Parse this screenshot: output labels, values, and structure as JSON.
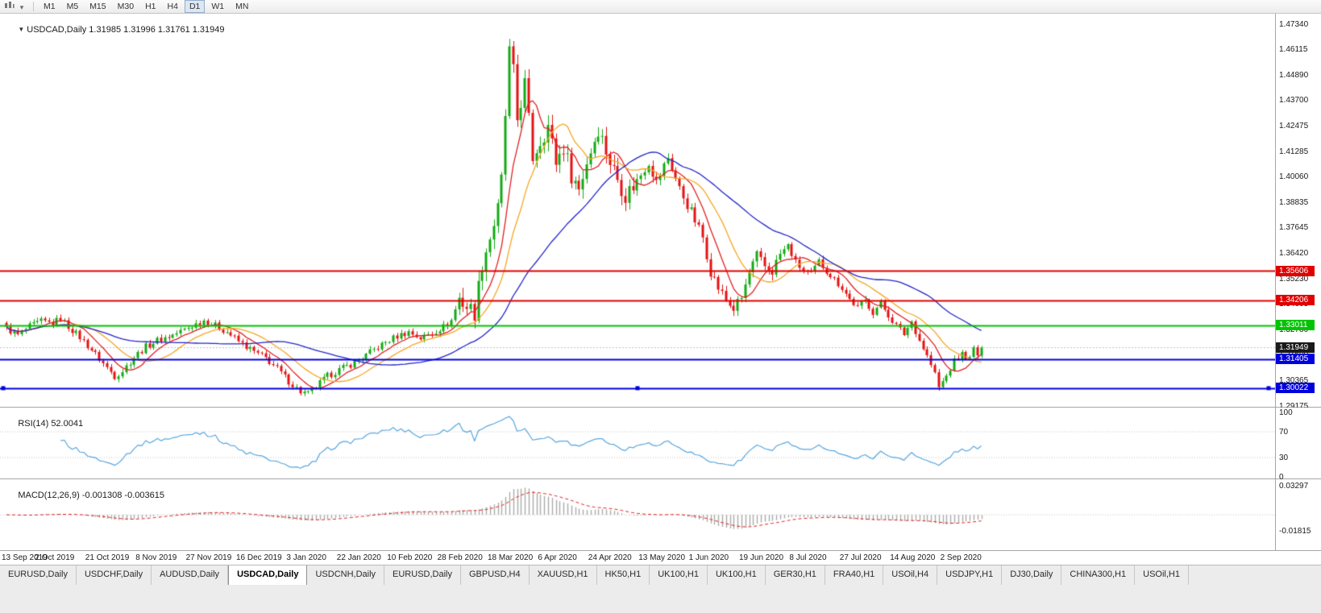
{
  "toolbar": {
    "icons": [
      "chart-type-icon",
      "timeframes-dropdown-icon"
    ],
    "timeframes": [
      "M1",
      "M5",
      "M15",
      "M30",
      "H1",
      "H4",
      "D1",
      "W1",
      "MN"
    ],
    "active_timeframe": "D1"
  },
  "chart": {
    "symbol_period": "USDCAD,Daily",
    "ohlc_text": "1.31985 1.31996 1.31761 1.31949",
    "price_ticks": [
      "1.47340",
      "1.46115",
      "1.44890",
      "1.43700",
      "1.42475",
      "1.41285",
      "1.40060",
      "1.38835",
      "1.37645",
      "1.36420",
      "1.35230",
      "1.34005",
      "1.32780",
      "1.31590",
      "1.30365",
      "1.29175"
    ],
    "levels": [
      {
        "type": "resistance-line",
        "label": "1.35606",
        "value": 1.35606,
        "color": "#DF0000",
        "width": 2
      },
      {
        "type": "resistance-line",
        "label": "1.34206",
        "value": 1.34206,
        "color": "#DF0000",
        "width": 2
      },
      {
        "type": "pivot-line",
        "label": "1.33011",
        "value": 1.33011,
        "color": "#00C400",
        "width": 2
      },
      {
        "type": "current-price",
        "label": "1.31949",
        "value": 1.31949,
        "color": "#1A1A1A",
        "width": 1
      },
      {
        "type": "support-line",
        "label": "1.31405",
        "value": 1.31405,
        "color": "#0000DC",
        "width": 2
      },
      {
        "type": "support-line",
        "label": "1.30022",
        "value": 1.30022,
        "color": "#0000DC",
        "width": 2,
        "selected": true
      }
    ],
    "date_labels": [
      "13 Sep 2019",
      "2 Oct 2019",
      "21 Oct 2019",
      "8 Nov 2019",
      "27 Nov 2019",
      "16 Dec 2019",
      "3 Jan 2020",
      "22 Jan 2020",
      "10 Feb 2020",
      "28 Feb 2020",
      "18 Mar 2020",
      "6 Apr 2020",
      "24 Apr 2020",
      "13 May 2020",
      "1 Jun 2020",
      "19 Jun 2020",
      "8 Jul 2020",
      "27 Jul 2020",
      "14 Aug 2020",
      "2 Sep 2020"
    ]
  },
  "rsi": {
    "name": "RSI(14)",
    "value": "52.0041",
    "line_color": "#56A6DE",
    "level_lines": [
      70,
      30
    ],
    "ticks": [
      {
        "label": "100",
        "value": 100
      },
      {
        "label": "70",
        "value": 70
      },
      {
        "label": "30",
        "value": 30
      },
      {
        "label": "0",
        "value": 0
      }
    ]
  },
  "macd": {
    "name": "MACD(12,26,9)",
    "values": "-0.001308 -0.003615",
    "histogram_color": "#ABABAB",
    "signal_color": "#E02020",
    "ticks": [
      {
        "label": "0.03297",
        "value": 0.03297
      },
      {
        "label": "-0.01815",
        "value": -0.01815
      }
    ]
  },
  "tabs": {
    "active_index": 3,
    "items": [
      "EURUSD,Daily",
      "USDCHF,Daily",
      "AUDUSD,Daily",
      "USDCAD,Daily",
      "USDCNH,Daily",
      "EURUSD,Daily",
      "GBPUSD,H4",
      "XAUUSD,H1",
      "HK50,H1",
      "UK100,H1",
      "UK100,H1",
      "GER30,H1",
      "FRA40,H1",
      "USOil,H4",
      "USDJPY,H1",
      "DJ30,Daily",
      "CHINA300,H1",
      "USOil,H1"
    ],
    "active_label": "USDCAD,Daily"
  },
  "chart_data": {
    "type": "candlestick",
    "symbol": "USDCAD",
    "timeframe": "Daily",
    "current_ohlc": {
      "open": 1.31985,
      "high": 1.31996,
      "low": 1.31761,
      "close": 1.31949
    },
    "bars": 253,
    "last_close": 1.31949,
    "y_axis": {
      "top": 1.4734,
      "bottom": 1.29175
    },
    "x_labels_every_bars": 13,
    "colors": {
      "up": "#14AA14",
      "down": "#E51212"
    },
    "moving_averages": [
      {
        "period": 8,
        "color": "#E02020"
      },
      {
        "period": 16,
        "color": "#F5A623"
      },
      {
        "period": 40,
        "color": "#2224C8"
      }
    ],
    "base_noise": 0.0016,
    "volatility_zones": [
      {
        "from": 117,
        "to": 162,
        "mult": 2.8
      },
      {
        "from": 163,
        "to": 200,
        "mult": 1.7
      }
    ],
    "close_keypoints": [
      [
        0,
        1.3285
      ],
      [
        3,
        1.3255
      ],
      [
        6,
        1.3295
      ],
      [
        9,
        1.332
      ],
      [
        12,
        1.331
      ],
      [
        14,
        1.3335
      ],
      [
        16,
        1.3295
      ],
      [
        19,
        1.3245
      ],
      [
        22,
        1.3185
      ],
      [
        25,
        1.312
      ],
      [
        28,
        1.306
      ],
      [
        30,
        1.3085
      ],
      [
        33,
        1.315
      ],
      [
        36,
        1.32
      ],
      [
        39,
        1.323
      ],
      [
        43,
        1.3255
      ],
      [
        47,
        1.329
      ],
      [
        51,
        1.3325
      ],
      [
        54,
        1.33
      ],
      [
        57,
        1.327
      ],
      [
        60,
        1.3225
      ],
      [
        64,
        1.3175
      ],
      [
        67,
        1.3145
      ],
      [
        70,
        1.3095
      ],
      [
        73,
        1.3035
      ],
      [
        76,
        1.2985
      ],
      [
        78,
        1.2975
      ],
      [
        80,
        1.301
      ],
      [
        83,
        1.306
      ],
      [
        86,
        1.309
      ],
      [
        89,
        1.3115
      ],
      [
        92,
        1.3145
      ],
      [
        95,
        1.3185
      ],
      [
        98,
        1.322
      ],
      [
        101,
        1.325
      ],
      [
        104,
        1.327
      ],
      [
        107,
        1.324
      ],
      [
        110,
        1.3265
      ],
      [
        113,
        1.3295
      ],
      [
        115,
        1.3325
      ],
      [
        117,
        1.343
      ],
      [
        119,
        1.339
      ],
      [
        121,
        1.3365
      ],
      [
        123,
        1.36
      ],
      [
        125,
        1.372
      ],
      [
        127,
        1.385
      ],
      [
        128,
        1.399
      ],
      [
        129,
        1.43
      ],
      [
        130,
        1.46
      ],
      [
        131,
        1.45
      ],
      [
        132,
        1.428
      ],
      [
        134,
        1.445
      ],
      [
        136,
        1.41
      ],
      [
        138,
        1.418
      ],
      [
        140,
        1.425
      ],
      [
        142,
        1.408
      ],
      [
        144,
        1.415
      ],
      [
        146,
        1.402
      ],
      [
        148,
        1.395
      ],
      [
        150,
        1.408
      ],
      [
        153,
        1.424
      ],
      [
        156,
        1.408
      ],
      [
        158,
        1.4
      ],
      [
        160,
        1.392
      ],
      [
        163,
        1.399
      ],
      [
        166,
        1.408
      ],
      [
        168,
        1.398
      ],
      [
        171,
        1.41
      ],
      [
        174,
        1.395
      ],
      [
        177,
        1.384
      ],
      [
        180,
        1.372
      ],
      [
        182,
        1.356
      ],
      [
        184,
        1.348
      ],
      [
        186,
        1.342
      ],
      [
        188,
        1.338
      ],
      [
        190,
        1.343
      ],
      [
        192,
        1.355
      ],
      [
        194,
        1.363
      ],
      [
        196,
        1.358
      ],
      [
        198,
        1.356
      ],
      [
        200,
        1.364
      ],
      [
        202,
        1.368
      ],
      [
        204,
        1.36
      ],
      [
        206,
        1.356
      ],
      [
        208,
        1.3545
      ],
      [
        210,
        1.3605
      ],
      [
        212,
        1.356
      ],
      [
        214,
        1.352
      ],
      [
        216,
        1.348
      ],
      [
        218,
        1.3425
      ],
      [
        220,
        1.3385
      ],
      [
        222,
        1.342
      ],
      [
        224,
        1.3365
      ],
      [
        226,
        1.3405
      ],
      [
        228,
        1.335
      ],
      [
        230,
        1.33
      ],
      [
        232,
        1.326
      ],
      [
        234,
        1.332
      ],
      [
        236,
        1.323
      ],
      [
        238,
        1.3155
      ],
      [
        240,
        1.307
      ],
      [
        241,
        1.3005
      ],
      [
        243,
        1.306
      ],
      [
        245,
        1.313
      ],
      [
        247,
        1.3165
      ],
      [
        249,
        1.314
      ],
      [
        250,
        1.319
      ],
      [
        251,
        1.316
      ],
      [
        252,
        1.31949
      ]
    ]
  }
}
